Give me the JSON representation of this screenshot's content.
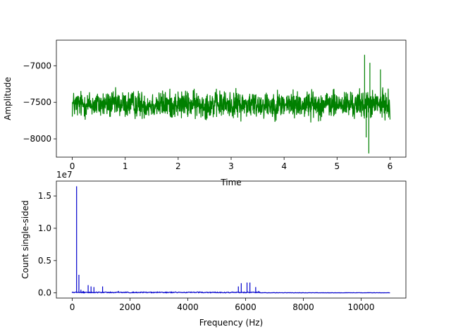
{
  "chart_data": [
    {
      "type": "line",
      "title": "",
      "xlabel": "Time",
      "ylabel": "Amplitude",
      "xlim": [
        -0.3,
        6.3
      ],
      "ylim": [
        -8250,
        -6650
      ],
      "xticks": [
        0,
        1,
        2,
        3,
        4,
        5,
        6
      ],
      "xtick_labels": [
        "0",
        "1",
        "2",
        "3",
        "4",
        "5",
        "6"
      ],
      "yticks": [
        -8000,
        -7500,
        -7000
      ],
      "ytick_labels": [
        "−8000",
        "−7500",
        "−7000"
      ],
      "grid": false,
      "series": [
        {
          "color": "#008000",
          "x_range": [
            0,
            6
          ],
          "center": -7530,
          "typical_min": -7850,
          "typical_max": -7250,
          "notable_points": [
            {
              "x": 5.52,
              "y": -6850
            },
            {
              "x": 5.62,
              "y": -6960
            },
            {
              "x": 5.82,
              "y": -7050
            },
            {
              "x": 5.6,
              "y": -8200
            },
            {
              "x": 5.55,
              "y": -7980
            }
          ]
        }
      ]
    },
    {
      "type": "line",
      "title": "",
      "xlabel": "Frequency (Hz)",
      "ylabel": "Count single-sided",
      "offset_text": "1e7",
      "xlim": [
        -550,
        11550
      ],
      "ylim": [
        -0.08,
        1.73
      ],
      "xticks": [
        0,
        2000,
        4000,
        6000,
        8000,
        10000
      ],
      "xtick_labels": [
        "0",
        "2000",
        "4000",
        "6000",
        "8000",
        "10000"
      ],
      "yticks": [
        0,
        0.5,
        1.0,
        1.5
      ],
      "ytick_labels": [
        "0.0",
        "0.5",
        "1.0",
        "1.5"
      ],
      "grid": false,
      "series": [
        {
          "color": "#0000cc",
          "peaks": [
            {
              "x": 150,
              "y": 1.65
            },
            {
              "x": 230,
              "y": 0.28
            },
            {
              "x": 300,
              "y": 0.05
            },
            {
              "x": 380,
              "y": 0.03
            },
            {
              "x": 550,
              "y": 0.12
            },
            {
              "x": 650,
              "y": 0.1
            },
            {
              "x": 750,
              "y": 0.09
            },
            {
              "x": 1050,
              "y": 0.1
            },
            {
              "x": 1600,
              "y": 0.03
            },
            {
              "x": 2100,
              "y": 0.02
            },
            {
              "x": 4400,
              "y": 0.02
            },
            {
              "x": 5750,
              "y": 0.1
            },
            {
              "x": 5850,
              "y": 0.15
            },
            {
              "x": 6050,
              "y": 0.16
            },
            {
              "x": 6150,
              "y": 0.16
            },
            {
              "x": 6350,
              "y": 0.09
            },
            {
              "x": 6450,
              "y": 0.03
            }
          ],
          "noise_end": 6500,
          "x_end": 11000
        }
      ]
    }
  ]
}
